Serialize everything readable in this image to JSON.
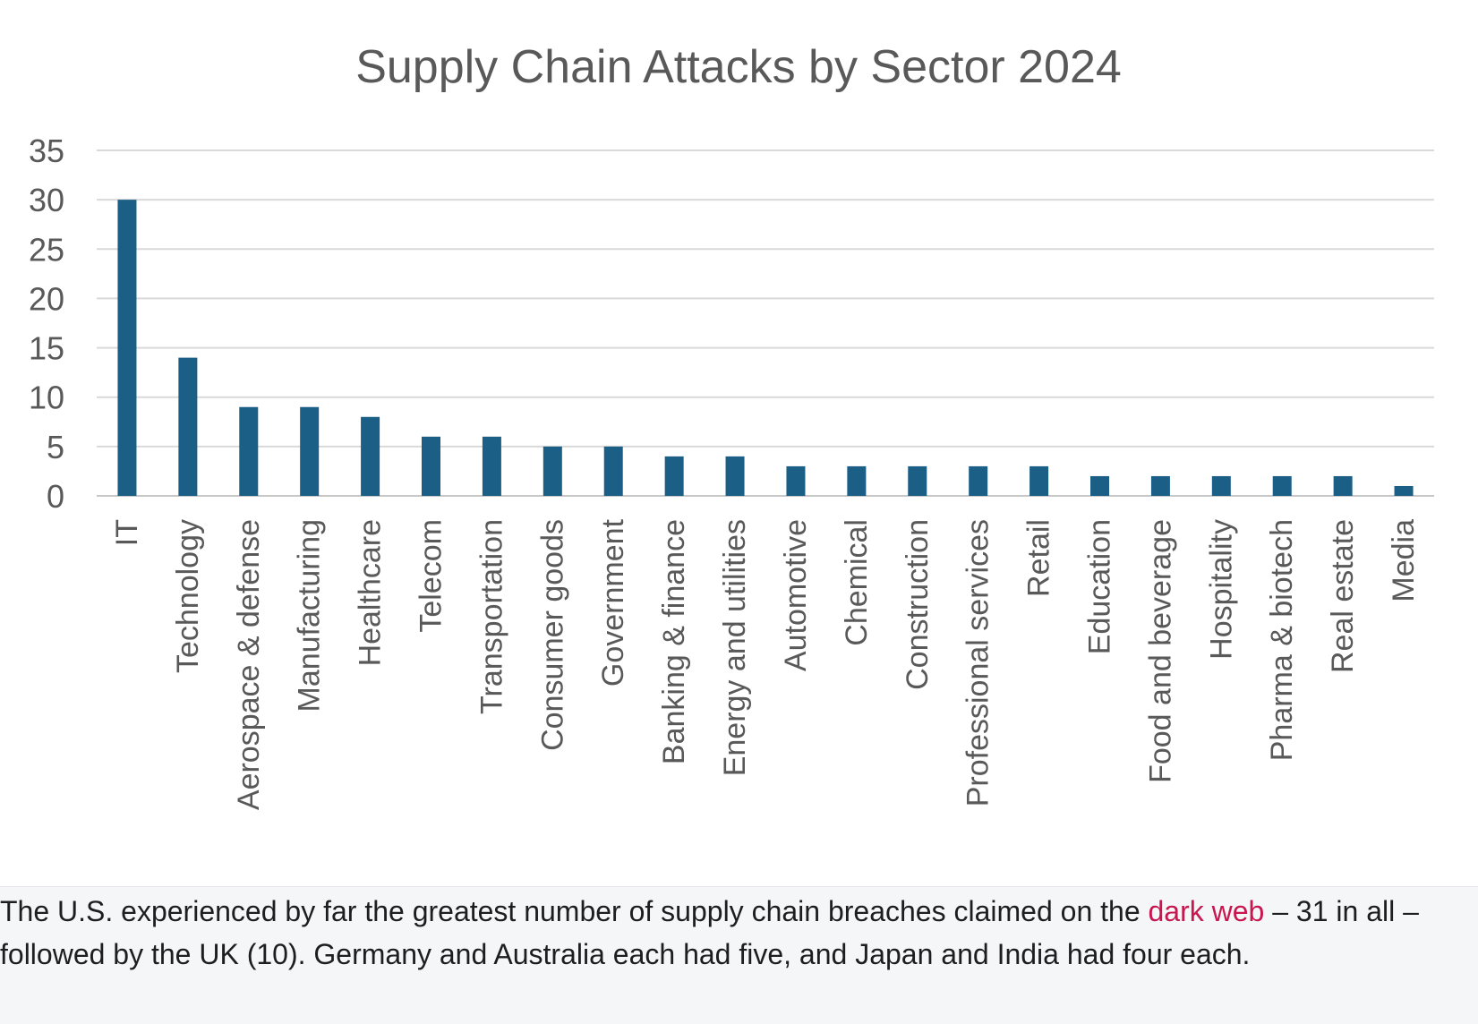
{
  "chart_data": {
    "type": "bar",
    "title": "Supply Chain Attacks by Sector 2024",
    "xlabel": "",
    "ylabel": "",
    "ylim": [
      0,
      35
    ],
    "yticks": [
      0,
      5,
      10,
      15,
      20,
      25,
      30,
      35
    ],
    "grid": true,
    "legend": "none",
    "categories": [
      "IT",
      "Technology",
      "Aerospace & defense",
      "Manufacturing",
      "Healthcare",
      "Telecom",
      "Transportation",
      "Consumer goods",
      "Government",
      "Banking & finance",
      "Energy and utilities",
      "Automotive",
      "Chemical",
      "Construction",
      "Professional services",
      "Retail",
      "Education",
      "Food and beverage",
      "Hospitality",
      "Pharma & biotech",
      "Real estate",
      "Media"
    ],
    "values": [
      30,
      14,
      9,
      9,
      8,
      6,
      6,
      5,
      5,
      4,
      4,
      3,
      3,
      3,
      3,
      3,
      2,
      2,
      2,
      2,
      2,
      1
    ],
    "colors": {
      "bar": "#1b5e86",
      "grid": "#d9d9d9",
      "text": "#595959"
    }
  },
  "caption": {
    "before_link": "The U.S. experienced by far the greatest number of supply chain breaches claimed on the ",
    "link_text": "dark web",
    "after_link": " – 31 in all – followed by the UK (10). Germany and Australia each had five, and Japan and India had four each.",
    "link_color": "#c8174e"
  }
}
